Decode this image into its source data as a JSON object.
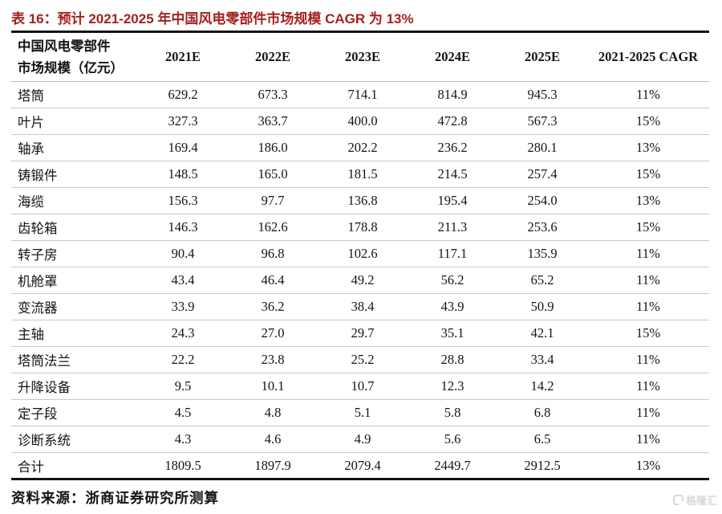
{
  "title": "表 16：预计 2021-2025 年中国风电零部件市场规模 CAGR 为 13%",
  "table": {
    "row_header": {
      "line1": "中国风电零部件",
      "line2": "市场规模（亿元）"
    },
    "columns": [
      "2021E",
      "2022E",
      "2023E",
      "2024E",
      "2025E",
      "2021-2025 CAGR"
    ],
    "rows": [
      {
        "label": "塔筒",
        "values": [
          "629.2",
          "673.3",
          "714.1",
          "814.9",
          "945.3",
          "11%"
        ]
      },
      {
        "label": "叶片",
        "values": [
          "327.3",
          "363.7",
          "400.0",
          "472.8",
          "567.3",
          "15%"
        ]
      },
      {
        "label": "轴承",
        "values": [
          "169.4",
          "186.0",
          "202.2",
          "236.2",
          "280.1",
          "13%"
        ]
      },
      {
        "label": "铸锻件",
        "values": [
          "148.5",
          "165.0",
          "181.5",
          "214.5",
          "257.4",
          "15%"
        ]
      },
      {
        "label": "海缆",
        "values": [
          "156.3",
          "97.7",
          "136.8",
          "195.4",
          "254.0",
          "13%"
        ]
      },
      {
        "label": "齿轮箱",
        "values": [
          "146.3",
          "162.6",
          "178.8",
          "211.3",
          "253.6",
          "15%"
        ]
      },
      {
        "label": "转子房",
        "values": [
          "90.4",
          "96.8",
          "102.6",
          "117.1",
          "135.9",
          "11%"
        ]
      },
      {
        "label": "机舱罩",
        "values": [
          "43.4",
          "46.4",
          "49.2",
          "56.2",
          "65.2",
          "11%"
        ]
      },
      {
        "label": "变流器",
        "values": [
          "33.9",
          "36.2",
          "38.4",
          "43.9",
          "50.9",
          "11%"
        ]
      },
      {
        "label": "主轴",
        "values": [
          "24.3",
          "27.0",
          "29.7",
          "35.1",
          "42.1",
          "15%"
        ]
      },
      {
        "label": "塔筒法兰",
        "values": [
          "22.2",
          "23.8",
          "25.2",
          "28.8",
          "33.4",
          "11%"
        ]
      },
      {
        "label": "升降设备",
        "values": [
          "9.5",
          "10.1",
          "10.7",
          "12.3",
          "14.2",
          "11%"
        ]
      },
      {
        "label": "定子段",
        "values": [
          "4.5",
          "4.8",
          "5.1",
          "5.8",
          "6.8",
          "11%"
        ]
      },
      {
        "label": "诊断系统",
        "values": [
          "4.3",
          "4.6",
          "4.9",
          "5.6",
          "6.5",
          "11%"
        ]
      },
      {
        "label": "合计",
        "values": [
          "1809.5",
          "1897.9",
          "2079.4",
          "2449.7",
          "2912.5",
          "13%"
        ]
      }
    ]
  },
  "source": "资料来源：浙商证券研究所测算",
  "watermark": {
    "text": "格隆汇"
  },
  "colors": {
    "title_red": "#a5201f",
    "rule_black": "#141414",
    "row_line": "#c9c9c9",
    "watermark_gray": "#d8d8d8"
  }
}
